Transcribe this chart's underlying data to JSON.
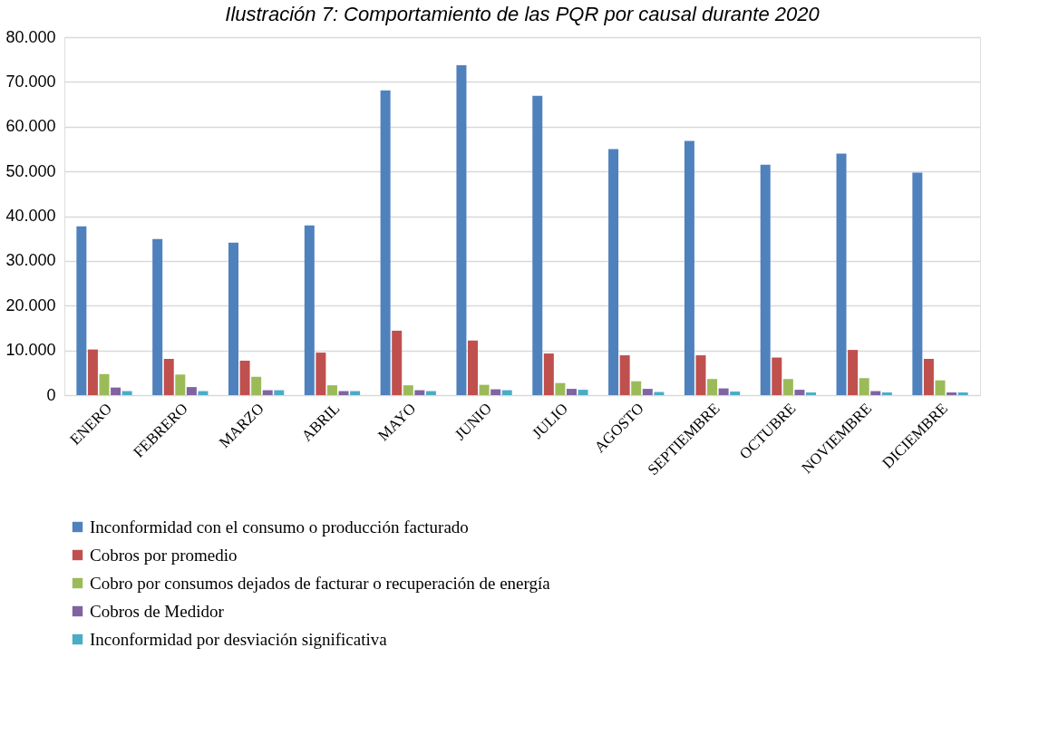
{
  "chart_data": {
    "type": "bar",
    "title": "Ilustración 7: Comportamiento de las PQR por causal durante 2020",
    "categories": [
      "ENERO",
      "FEBRERO",
      "MARZO",
      "ABRIL",
      "MAYO",
      "JUNIO",
      "JULIO",
      "AGOSTO",
      "SEPTIEMBRE",
      "OCTUBRE",
      "NOVIEMBRE",
      "DICIEMBRE"
    ],
    "series": [
      {
        "name": "Inconformidad con el consumo o producción facturado",
        "color": "#4f81bd",
        "values": [
          37700,
          34900,
          34100,
          37900,
          68100,
          73700,
          66900,
          55000,
          56800,
          51500,
          54000,
          49700
        ]
      },
      {
        "name": "Cobros por promedio",
        "color": "#c0504d",
        "values": [
          10200,
          8100,
          7700,
          9500,
          14400,
          12200,
          9300,
          8900,
          8900,
          8400,
          10100,
          8100
        ]
      },
      {
        "name": "Cobro por consumos dejados de facturar o recuperación de energía",
        "color": "#9bbb59",
        "values": [
          4700,
          4600,
          4100,
          2200,
          2200,
          2300,
          2700,
          3100,
          3600,
          3600,
          3800,
          3300
        ]
      },
      {
        "name": "Cobros de Medidor",
        "color": "#8064a2",
        "values": [
          1700,
          1800,
          1100,
          900,
          1100,
          1300,
          1400,
          1400,
          1500,
          1200,
          900,
          600
        ]
      },
      {
        "name": "Inconformidad por desviación significativa",
        "color": "#4bacc6",
        "values": [
          900,
          900,
          1100,
          900,
          900,
          1100,
          1200,
          700,
          800,
          600,
          600,
          600
        ]
      }
    ],
    "ylim": [
      0,
      80000
    ],
    "yticks": [
      {
        "value": 0,
        "label": "0"
      },
      {
        "value": 10000,
        "label": "10.000"
      },
      {
        "value": 20000,
        "label": "20.000"
      },
      {
        "value": 30000,
        "label": "30.000"
      },
      {
        "value": 40000,
        "label": "40.000"
      },
      {
        "value": 50000,
        "label": "50.000"
      },
      {
        "value": 60000,
        "label": "60.000"
      },
      {
        "value": 70000,
        "label": "70.000"
      },
      {
        "value": 80000,
        "label": "80.000"
      }
    ],
    "grid": "y",
    "legend": "bottom"
  }
}
